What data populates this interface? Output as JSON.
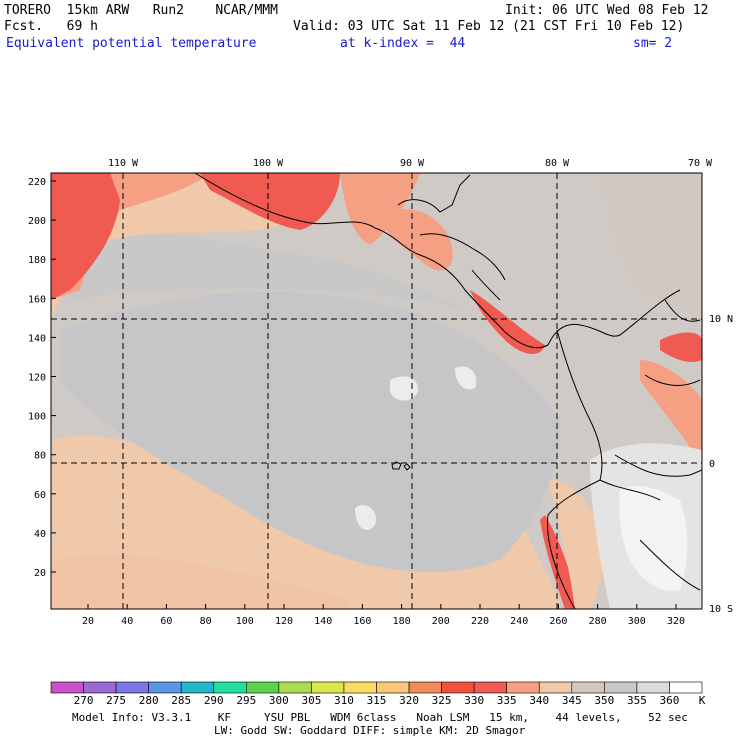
{
  "header": {
    "model": "TORERO  15km ARW   Run2    NCAR/MMM",
    "init": "Init: 06 UTC Wed 08 Feb 12",
    "fcst": "Fcst.   69 h",
    "valid": "Valid: 03 UTC Sat 11 Feb 12 (21 CST Fri 10 Feb 12)",
    "field": "Equivalent potential temperature",
    "level": "at k-index =  44",
    "smooth": "sm= 2"
  },
  "map": {
    "lon_labels": [
      "110 W",
      "100 W",
      "90 W",
      "80 W",
      "70 W"
    ],
    "lat_labels": [
      "10 N",
      "0",
      "10 S"
    ],
    "y_ticks": [
      "220",
      "200",
      "180",
      "160",
      "140",
      "120",
      "100",
      "80",
      "60",
      "40",
      "20"
    ],
    "x_ticks": [
      "20",
      "40",
      "60",
      "80",
      "100",
      "120",
      "140",
      "160",
      "180",
      "200",
      "220",
      "240",
      "260",
      "280",
      "300",
      "320"
    ]
  },
  "colorbar": {
    "labels": [
      "270",
      "275",
      "280",
      "285",
      "290",
      "295",
      "300",
      "305",
      "310",
      "315",
      "320",
      "325",
      "330",
      "335",
      "340",
      "345",
      "350",
      "355",
      "360"
    ],
    "unit": "K",
    "colors": [
      "#c850c8",
      "#9a6ad2",
      "#7878e6",
      "#5a96e6",
      "#2ab4c8",
      "#28dca0",
      "#5ad250",
      "#aadc50",
      "#dce650",
      "#fadc64",
      "#fac878",
      "#f08c5a",
      "#f0503c",
      "#f05a50",
      "#f5a082",
      "#f0c8aa",
      "#d2c8c0",
      "#c8c8c8",
      "#dcdcdc",
      "#ffffff"
    ]
  },
  "footer": {
    "line1": "Model Info: V3.3.1    KF     YSU PBL   WDM 6class   Noah LSM   15 km,    44 levels,    52 sec",
    "line2": "LW: Godd SW: Goddard DIFF: simple KM: 2D Smagor"
  }
}
